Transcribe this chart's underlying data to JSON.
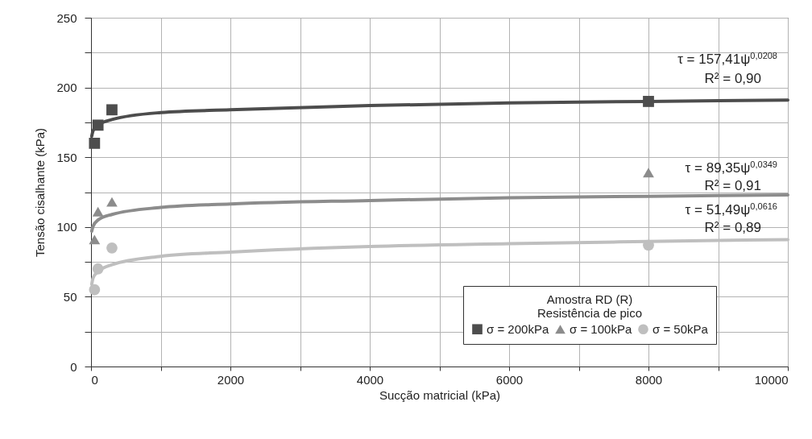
{
  "chart_data": {
    "type": "scatter",
    "xlabel": "Sucção matricial (kPa)",
    "ylabel": "Tensão cisalhante (kPa)",
    "legend_title": "Amostra RD (R)\nResistência de pico",
    "legend": "bottom right",
    "grid": true,
    "xlim": [
      0,
      10000
    ],
    "xticks": [
      0,
      {
        "value": 1000,
        "label": null
      },
      2000,
      {
        "value": 3000,
        "label": null
      },
      4000,
      {
        "value": 5000,
        "label": null
      },
      6000,
      {
        "value": 7000,
        "label": null
      },
      8000,
      {
        "value": 9000,
        "label": null
      },
      10000
    ],
    "ylim": [
      0,
      250
    ],
    "yticks": [
      0,
      {
        "value": 25,
        "label": null
      },
      50,
      {
        "value": 75,
        "label": null
      },
      100,
      {
        "value": 125,
        "label": null
      },
      150,
      {
        "value": 175,
        "label": null
      },
      200,
      {
        "value": 225,
        "label": null
      },
      250
    ],
    "series": [
      {
        "name": "σ = 200kPa",
        "type": "scatter",
        "marker": "square",
        "color": "#4d4d4d",
        "x": [
          50,
          100,
          300,
          8000
        ],
        "values": [
          160,
          173,
          184,
          190
        ]
      },
      {
        "name": "σ = 100kPa",
        "type": "scatter",
        "marker": "triangle",
        "color": "#8c8c8c",
        "x": [
          50,
          100,
          300,
          8000
        ],
        "values": [
          91,
          111,
          118,
          139
        ]
      },
      {
        "name": "σ = 50kPa",
        "type": "scatter",
        "marker": "circle",
        "color": "#bfbfbf",
        "x": [
          50,
          100,
          300,
          8000
        ],
        "values": [
          55,
          70,
          85,
          87
        ]
      },
      {
        "type": "line",
        "color": "#4d4d4d",
        "x": [
          10,
          30,
          100,
          300,
          1000,
          2000,
          4000,
          6000,
          8000,
          10000
        ],
        "values": [
          165,
          169,
          173,
          177,
          182,
          184,
          187,
          189,
          190,
          191
        ]
      },
      {
        "type": "line",
        "color": "#8c8c8c",
        "x": [
          10,
          30,
          100,
          300,
          1000,
          2000,
          4000,
          6000,
          8000,
          10000
        ],
        "values": [
          97,
          100.6,
          105,
          109,
          114,
          116.5,
          119,
          121,
          122,
          123
        ]
      },
      {
        "type": "line",
        "color": "#bfbfbf",
        "x": [
          10,
          30,
          100,
          300,
          1000,
          2000,
          4000,
          6000,
          8000,
          10000
        ],
        "values": [
          59,
          63.5,
          68,
          73,
          79,
          82,
          86,
          88,
          89.6,
          91
        ]
      }
    ],
    "annotations": [
      "τ = 157,41ψ$^{0,0208}$",
      "R² = 0,90",
      "τ = 89,35ψ$^{0,0349}$",
      "R² = 0,91",
      "τ = 51,49ψ$^{0,0616}$",
      "R² = 0,89"
    ]
  }
}
